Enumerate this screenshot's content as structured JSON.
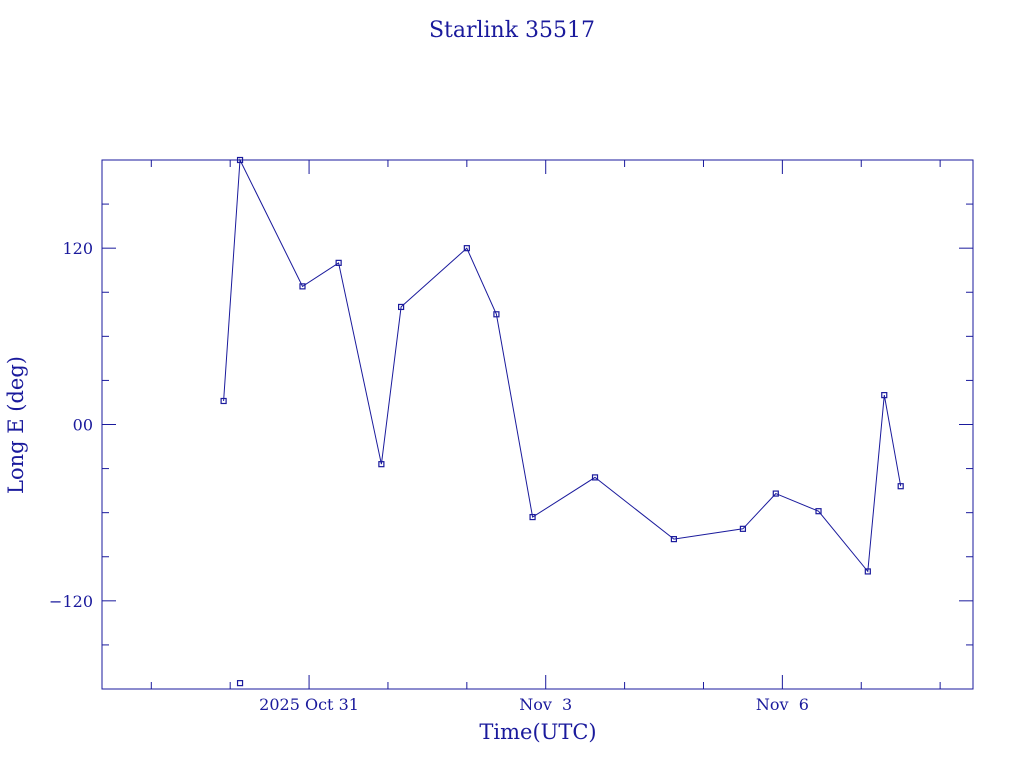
{
  "chart_data": {
    "type": "line",
    "title": "Starlink 35517",
    "xlabel": "Time(UTC)",
    "ylabel": "Long E (deg)",
    "color": "#1a1a9c",
    "x_ticks": [
      {
        "label": "2025 Oct 31",
        "value": "2025-10-31"
      },
      {
        "label": "Nov  3",
        "value": "2025-11-03"
      },
      {
        "label": "Nov  6",
        "value": "2025-11-06"
      }
    ],
    "y_ticks": [
      {
        "label": "120",
        "value": 120
      },
      {
        "label": "00",
        "value": 0
      },
      {
        "label": "−120",
        "value": -120
      }
    ],
    "xlim": [
      "2025-10-28T09:00",
      "2025-11-08T10:00"
    ],
    "ylim": [
      -180,
      180
    ],
    "series": [
      {
        "points": [
          {
            "t": "2025-10-29T22:00",
            "lon": 16
          },
          {
            "t": "2025-10-30T03:00",
            "lon": 180
          },
          {
            "t": "2025-10-30T22:00",
            "lon": 94
          },
          {
            "t": "2025-10-31T09:00",
            "lon": 110
          },
          {
            "t": "2025-10-31T22:00",
            "lon": -27
          },
          {
            "t": "2025-11-01T04:00",
            "lon": 80
          },
          {
            "t": "2025-11-02T00:00",
            "lon": 120
          },
          {
            "t": "2025-11-02T09:00",
            "lon": 75
          },
          {
            "t": "2025-11-02T20:00",
            "lon": -63
          },
          {
            "t": "2025-11-03T15:00",
            "lon": -36
          },
          {
            "t": "2025-11-04T15:00",
            "lon": -78
          },
          {
            "t": "2025-11-05T12:00",
            "lon": -71
          },
          {
            "t": "2025-11-05T22:00",
            "lon": -47
          },
          {
            "t": "2025-11-06T11:00",
            "lon": -59
          },
          {
            "t": "2025-11-07T02:00",
            "lon": -100
          },
          {
            "t": "2025-11-07T07:00",
            "lon": 20
          },
          {
            "t": "2025-11-07T12:00",
            "lon": -42
          }
        ]
      }
    ],
    "isolated_points": [
      {
        "t": "2025-10-30T03:00",
        "lon": -176
      }
    ],
    "grid": false
  }
}
